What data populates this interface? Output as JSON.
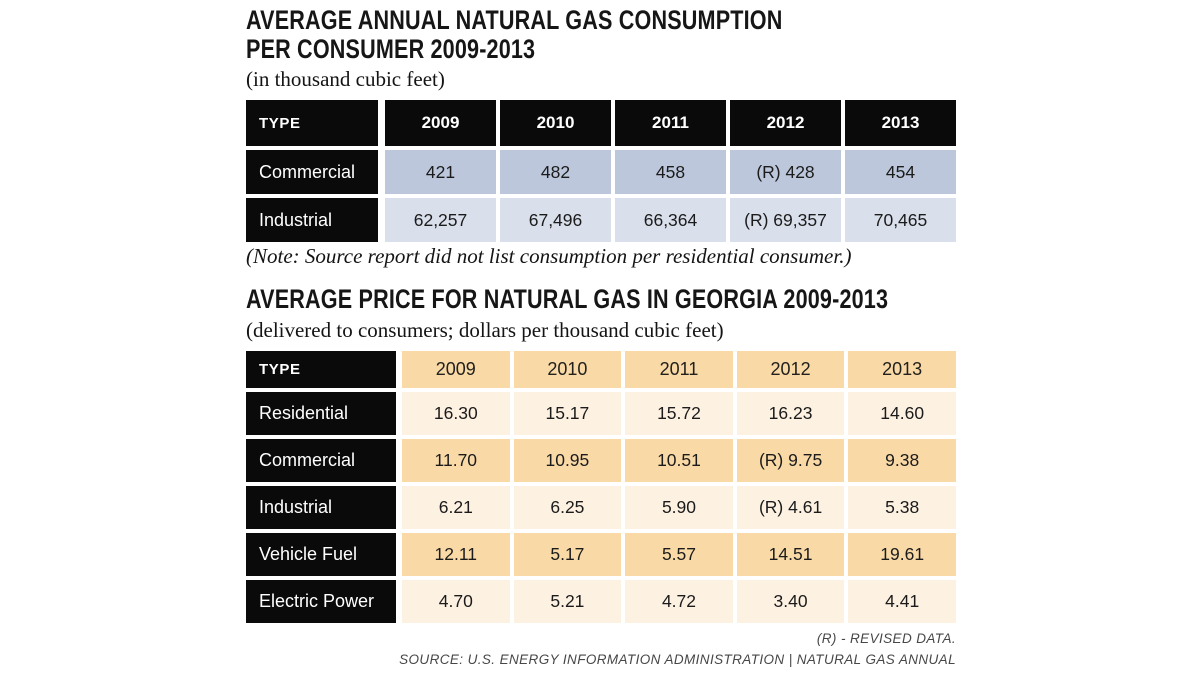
{
  "palette": {
    "header_cell": "#0a0a0a",
    "table1_row_dark": "#bcc7db",
    "table1_row_light": "#d9dfeb",
    "table2_row_dark": "#f9d9a6",
    "table2_row_light": "#fdf1e2",
    "text_dark": "#1b1b1b",
    "header_text": "#ffffff"
  },
  "section1": {
    "title_line1": "AVERAGE ANNUAL NATURAL GAS CONSUMPTION",
    "title_line2": "PER CONSUMER 2009-2013",
    "subtitle": "(in thousand cubic feet)",
    "note": "(Note: Source report did not list consumption per residential consumer.)",
    "table": {
      "type_header": "TYPE",
      "years": [
        "2009",
        "2010",
        "2011",
        "2012",
        "2013"
      ],
      "rows": [
        {
          "label": "Commercial",
          "values": [
            "421",
            "482",
            "458",
            "(R) 428",
            "454"
          ]
        },
        {
          "label": "Industrial",
          "values": [
            "62,257",
            "67,496",
            "66,364",
            "(R) 69,357",
            "70,465"
          ]
        }
      ]
    }
  },
  "section2": {
    "title": "AVERAGE PRICE FOR NATURAL GAS IN GEORGIA 2009-2013",
    "subtitle": "(delivered to consumers; dollars per thousand cubic feet)",
    "table": {
      "type_header": "TYPE",
      "years": [
        "2009",
        "2010",
        "2011",
        "2012",
        "2013"
      ],
      "rows": [
        {
          "label": "Residential",
          "values": [
            "16.30",
            "15.17",
            "15.72",
            "16.23",
            "14.60"
          ]
        },
        {
          "label": "Commercial",
          "values": [
            "11.70",
            "10.95",
            "10.51",
            "(R) 9.75",
            "9.38"
          ]
        },
        {
          "label": "Industrial",
          "values": [
            "6.21",
            "6.25",
            "5.90",
            "(R) 4.61",
            "5.38"
          ]
        },
        {
          "label": "Vehicle Fuel",
          "values": [
            "12.11",
            "5.17",
            "5.57",
            "14.51",
            "19.61"
          ]
        },
        {
          "label": "Electric Power",
          "values": [
            "4.70",
            "5.21",
            "4.72",
            "3.40",
            "4.41"
          ]
        }
      ]
    },
    "legend": "(R) - REVISED DATA.",
    "source": "SOURCE: U.S. ENERGY INFORMATION ADMINISTRATION | NATURAL GAS ANNUAL"
  },
  "chart_data": [
    {
      "type": "table",
      "title": "AVERAGE ANNUAL NATURAL GAS CONSUMPTION PER CONSUMER 2009-2013",
      "subtitle": "(in thousand cubic feet)",
      "columns": [
        "TYPE",
        "2009",
        "2010",
        "2011",
        "2012",
        "2013"
      ],
      "rows": [
        [
          "Commercial",
          "421",
          "482",
          "458",
          "(R) 428",
          "454"
        ],
        [
          "Industrial",
          "62,257",
          "67,496",
          "66,364",
          "(R) 69,357",
          "70,465"
        ]
      ],
      "note": "(Note: Source report did not list consumption per residential consumer.)"
    },
    {
      "type": "table",
      "title": "AVERAGE PRICE FOR NATURAL GAS IN GEORGIA 2009-2013",
      "subtitle": "(delivered to consumers; dollars per thousand cubic feet)",
      "columns": [
        "TYPE",
        "2009",
        "2010",
        "2011",
        "2012",
        "2013"
      ],
      "rows": [
        [
          "Residential",
          "16.30",
          "15.17",
          "15.72",
          "16.23",
          "14.60"
        ],
        [
          "Commercial",
          "11.70",
          "10.95",
          "10.51",
          "(R) 9.75",
          "9.38"
        ],
        [
          "Industrial",
          "6.21",
          "6.25",
          "5.90",
          "(R) 4.61",
          "5.38"
        ],
        [
          "Vehicle Fuel",
          "12.11",
          "5.17",
          "5.57",
          "14.51",
          "19.61"
        ],
        [
          "Electric Power",
          "4.70",
          "5.21",
          "4.72",
          "3.40",
          "4.41"
        ]
      ],
      "legend": "(R) - REVISED DATA.",
      "source": "SOURCE: U.S. ENERGY INFORMATION ADMINISTRATION | NATURAL GAS ANNUAL"
    }
  ]
}
